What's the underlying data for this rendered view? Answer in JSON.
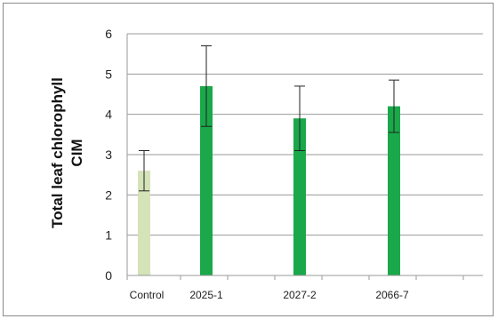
{
  "chart_data": {
    "type": "bar",
    "title": "",
    "xlabel": "",
    "ylabel_line1": "Total leaf chlorophyll",
    "ylabel_line2": "CIM",
    "ylim": [
      0,
      6
    ],
    "yticks": [
      "0",
      "1",
      "2",
      "3",
      "4",
      "5",
      "6"
    ],
    "categories": [
      "Control",
      "2025-1",
      "2027-2",
      "2066-7"
    ],
    "values": [
      2.6,
      4.7,
      3.9,
      4.2
    ],
    "error_low": [
      2.1,
      3.7,
      3.1,
      3.55
    ],
    "error_high": [
      3.1,
      5.7,
      4.7,
      4.85
    ],
    "bar_colors": [
      "#d4e3b8",
      "#1aa84a",
      "#1aa84a",
      "#1aa84a"
    ],
    "grid": true,
    "legend": "none"
  }
}
